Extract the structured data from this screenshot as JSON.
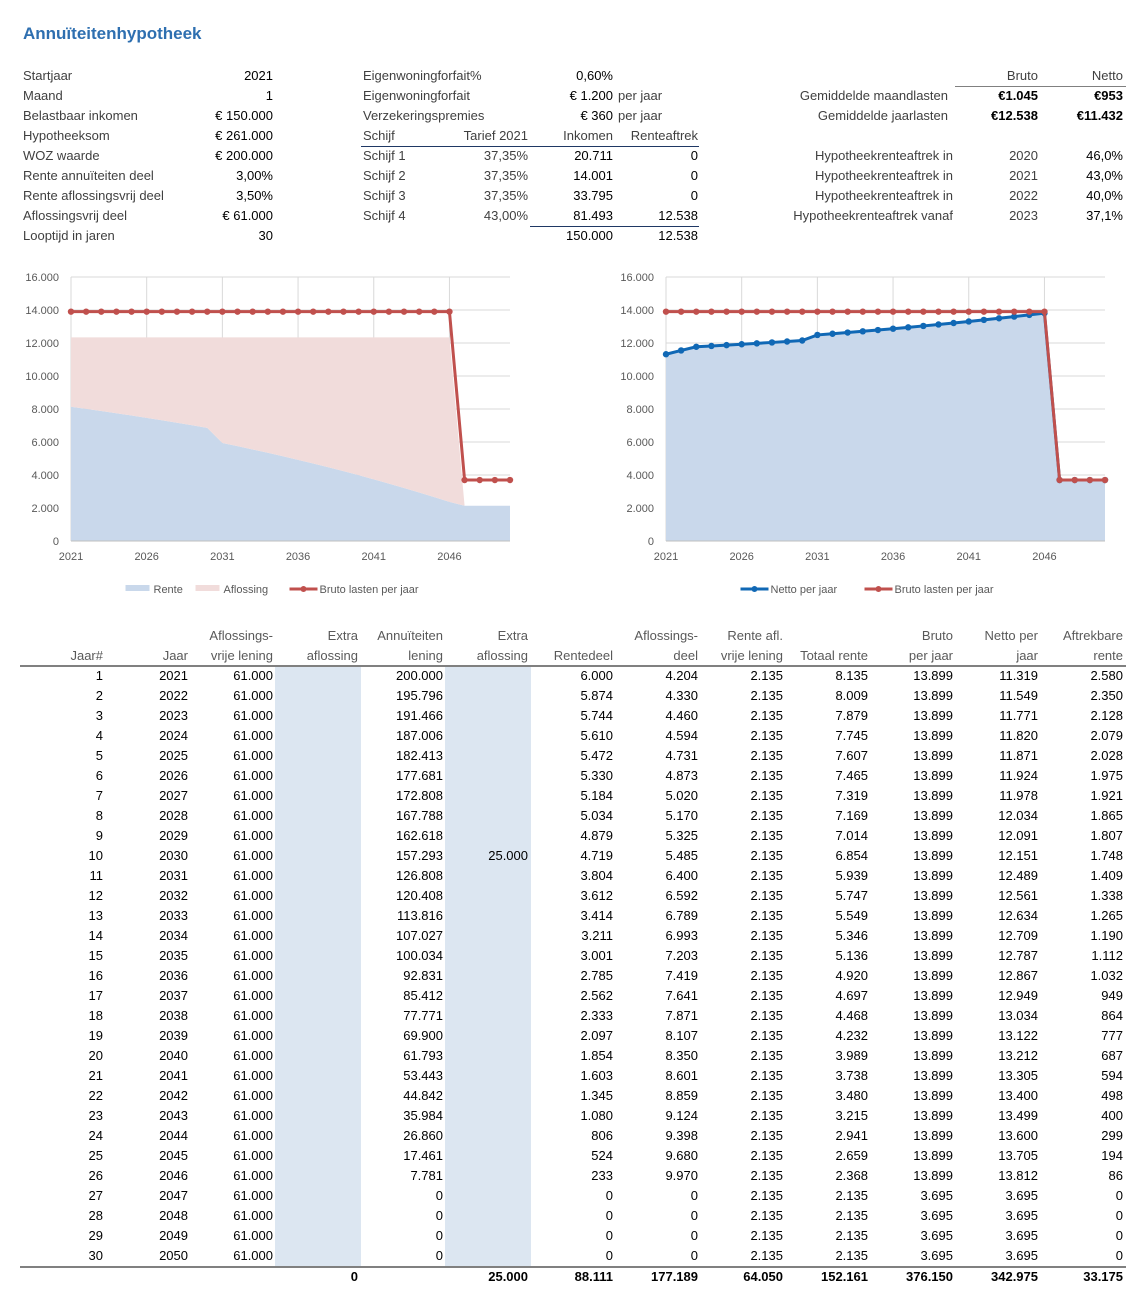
{
  "title": "Annuïteitenhypotheek",
  "inputs": [
    {
      "label": "Startjaar",
      "value": "2021"
    },
    {
      "label": "Maand",
      "value": "1"
    },
    {
      "label": "Belastbaar inkomen",
      "value": "€ 150.000"
    },
    {
      "label": "Hypotheeksom",
      "value": "€ 261.000"
    },
    {
      "label": "WOZ waarde",
      "value": "€ 200.000"
    },
    {
      "label": "Rente annuïteiten deel",
      "value": "3,00%"
    },
    {
      "label": "Rente aflossingsvrij deel",
      "value": "3,50%"
    },
    {
      "label": "Aflossingsvrij deel",
      "value": "€ 61.000"
    },
    {
      "label": "Looptijd in jaren",
      "value": "30"
    }
  ],
  "forfait": [
    {
      "label": "Eigenwoningforfait%",
      "value": "0,60%",
      "unit": ""
    },
    {
      "label": "Eigenwoningforfait",
      "value": "€ 1.200",
      "unit": "per jaar"
    },
    {
      "label": "Verzekeringspremies",
      "value": "€ 360",
      "unit": "per jaar"
    }
  ],
  "schijven": {
    "headers": [
      "Schijf",
      "Tarief 2021",
      "Inkomen",
      "Renteaftrek"
    ],
    "rows": [
      [
        "Schijf 1",
        "37,35%",
        "20.711",
        "0"
      ],
      [
        "Schijf 2",
        "37,35%",
        "14.001",
        "0"
      ],
      [
        "Schijf 3",
        "37,35%",
        "33.795",
        "0"
      ],
      [
        "Schijf 4",
        "43,00%",
        "81.493",
        "12.538"
      ]
    ],
    "totals": [
      "150.000",
      "12.538"
    ]
  },
  "lasten": {
    "headers": [
      "Bruto",
      "Netto"
    ],
    "rows": [
      {
        "label": "Gemiddelde maandlasten",
        "bruto": "€1.045",
        "netto": "€953"
      },
      {
        "label": "Gemiddelde jaarlasten",
        "bruto": "€12.538",
        "netto": "€11.432"
      }
    ]
  },
  "aftrek": [
    {
      "label": "Hypotheekrenteaftrek in",
      "year": "2020",
      "pct": "46,0%"
    },
    {
      "label": "Hypotheekrenteaftrek in",
      "year": "2021",
      "pct": "43,0%"
    },
    {
      "label": "Hypotheekrenteaftrek in",
      "year": "2022",
      "pct": "40,0%"
    },
    {
      "label": "Hypotheekrenteaftrek vanaf",
      "year": "2023",
      "pct": "37,1%"
    }
  ],
  "colors": {
    "rente": "#c9d8eb",
    "aflossing": "#f1dcdb",
    "bruto": "#c0504d",
    "netto": "#1068b5",
    "title": "#2e6fb0",
    "shade": "#dce6f1"
  },
  "chart_data": [
    {
      "type": "area",
      "title": "",
      "ylim": [
        0,
        16000
      ],
      "yticks": [
        "0",
        "2.000",
        "4.000",
        "6.000",
        "8.000",
        "10.000",
        "12.000",
        "14.000",
        "16.000"
      ],
      "xticks": [
        "2021",
        "2026",
        "2031",
        "2036",
        "2041",
        "2046"
      ],
      "x": [
        2021,
        2022,
        2023,
        2024,
        2025,
        2026,
        2027,
        2028,
        2029,
        2030,
        2031,
        2032,
        2033,
        2034,
        2035,
        2036,
        2037,
        2038,
        2039,
        2040,
        2041,
        2042,
        2043,
        2044,
        2045,
        2046,
        2047,
        2048,
        2049,
        2050
      ],
      "series": [
        {
          "name": "Rente",
          "kind": "area",
          "values": [
            8135,
            8009,
            7879,
            7745,
            7607,
            7465,
            7319,
            7169,
            7014,
            6854,
            5939,
            5747,
            5549,
            5346,
            5136,
            4920,
            4697,
            4468,
            4232,
            3989,
            3738,
            3480,
            3215,
            2941,
            2659,
            2368,
            2135,
            2135,
            2135,
            2135
          ]
        },
        {
          "name": "Aflossing",
          "kind": "area",
          "values": [
            4204,
            4330,
            4460,
            4594,
            4731,
            4873,
            5020,
            5170,
            5325,
            5485,
            6400,
            6592,
            6789,
            6993,
            7203,
            7419,
            7641,
            7871,
            8107,
            8350,
            8601,
            8859,
            9124,
            9398,
            9680,
            9970,
            0,
            0,
            0,
            0
          ]
        },
        {
          "name": "Bruto lasten per jaar",
          "kind": "line",
          "values": [
            13899,
            13899,
            13899,
            13899,
            13899,
            13899,
            13899,
            13899,
            13899,
            13899,
            13899,
            13899,
            13899,
            13899,
            13899,
            13899,
            13899,
            13899,
            13899,
            13899,
            13899,
            13899,
            13899,
            13899,
            13899,
            13899,
            3695,
            3695,
            3695,
            3695
          ]
        }
      ],
      "legend": "bottom"
    },
    {
      "type": "line",
      "title": "",
      "ylim": [
        0,
        16000
      ],
      "yticks": [
        "0",
        "2.000",
        "4.000",
        "6.000",
        "8.000",
        "10.000",
        "12.000",
        "14.000",
        "16.000"
      ],
      "xticks": [
        "2021",
        "2026",
        "2031",
        "2036",
        "2041",
        "2046"
      ],
      "x": [
        2021,
        2022,
        2023,
        2024,
        2025,
        2026,
        2027,
        2028,
        2029,
        2030,
        2031,
        2032,
        2033,
        2034,
        2035,
        2036,
        2037,
        2038,
        2039,
        2040,
        2041,
        2042,
        2043,
        2044,
        2045,
        2046,
        2047,
        2048,
        2049,
        2050
      ],
      "series": [
        {
          "name": "Netto per jaar",
          "kind": "line-area",
          "values": [
            11319,
            11549,
            11771,
            11820,
            11871,
            11924,
            11978,
            12034,
            12091,
            12151,
            12489,
            12561,
            12634,
            12709,
            12787,
            12867,
            12949,
            13034,
            13122,
            13212,
            13305,
            13400,
            13499,
            13600,
            13705,
            13812,
            3695,
            3695,
            3695,
            3695
          ]
        },
        {
          "name": "Bruto lasten per jaar",
          "kind": "line",
          "values": [
            13899,
            13899,
            13899,
            13899,
            13899,
            13899,
            13899,
            13899,
            13899,
            13899,
            13899,
            13899,
            13899,
            13899,
            13899,
            13899,
            13899,
            13899,
            13899,
            13899,
            13899,
            13899,
            13899,
            13899,
            13899,
            13899,
            3695,
            3695,
            3695,
            3695
          ]
        }
      ],
      "legend": "bottom"
    }
  ],
  "table": {
    "headers": [
      [
        "",
        "Jaar#"
      ],
      [
        "",
        "Jaar"
      ],
      [
        "Aflossings-",
        "vrije lening"
      ],
      [
        "Extra",
        "aflossing"
      ],
      [
        "Annuïteiten",
        "lening"
      ],
      [
        "Extra",
        "aflossing"
      ],
      [
        "",
        "Rentedeel"
      ],
      [
        "Aflossings-",
        "deel"
      ],
      [
        "Rente afl.",
        "vrije lening"
      ],
      [
        "",
        "Totaal rente"
      ],
      [
        "Bruto",
        "per jaar"
      ],
      [
        "Netto per",
        "jaar"
      ],
      [
        "Aftrekbare",
        "rente"
      ]
    ],
    "rows": [
      [
        "1",
        "2021",
        "61.000",
        "",
        "200.000",
        "",
        "6.000",
        "4.204",
        "2.135",
        "8.135",
        "13.899",
        "11.319",
        "2.580"
      ],
      [
        "2",
        "2022",
        "61.000",
        "",
        "195.796",
        "",
        "5.874",
        "4.330",
        "2.135",
        "8.009",
        "13.899",
        "11.549",
        "2.350"
      ],
      [
        "3",
        "2023",
        "61.000",
        "",
        "191.466",
        "",
        "5.744",
        "4.460",
        "2.135",
        "7.879",
        "13.899",
        "11.771",
        "2.128"
      ],
      [
        "4",
        "2024",
        "61.000",
        "",
        "187.006",
        "",
        "5.610",
        "4.594",
        "2.135",
        "7.745",
        "13.899",
        "11.820",
        "2.079"
      ],
      [
        "5",
        "2025",
        "61.000",
        "",
        "182.413",
        "",
        "5.472",
        "4.731",
        "2.135",
        "7.607",
        "13.899",
        "11.871",
        "2.028"
      ],
      [
        "6",
        "2026",
        "61.000",
        "",
        "177.681",
        "",
        "5.330",
        "4.873",
        "2.135",
        "7.465",
        "13.899",
        "11.924",
        "1.975"
      ],
      [
        "7",
        "2027",
        "61.000",
        "",
        "172.808",
        "",
        "5.184",
        "5.020",
        "2.135",
        "7.319",
        "13.899",
        "11.978",
        "1.921"
      ],
      [
        "8",
        "2028",
        "61.000",
        "",
        "167.788",
        "",
        "5.034",
        "5.170",
        "2.135",
        "7.169",
        "13.899",
        "12.034",
        "1.865"
      ],
      [
        "9",
        "2029",
        "61.000",
        "",
        "162.618",
        "",
        "4.879",
        "5.325",
        "2.135",
        "7.014",
        "13.899",
        "12.091",
        "1.807"
      ],
      [
        "10",
        "2030",
        "61.000",
        "",
        "157.293",
        "25.000",
        "4.719",
        "5.485",
        "2.135",
        "6.854",
        "13.899",
        "12.151",
        "1.748"
      ],
      [
        "11",
        "2031",
        "61.000",
        "",
        "126.808",
        "",
        "3.804",
        "6.400",
        "2.135",
        "5.939",
        "13.899",
        "12.489",
        "1.409"
      ],
      [
        "12",
        "2032",
        "61.000",
        "",
        "120.408",
        "",
        "3.612",
        "6.592",
        "2.135",
        "5.747",
        "13.899",
        "12.561",
        "1.338"
      ],
      [
        "13",
        "2033",
        "61.000",
        "",
        "113.816",
        "",
        "3.414",
        "6.789",
        "2.135",
        "5.549",
        "13.899",
        "12.634",
        "1.265"
      ],
      [
        "14",
        "2034",
        "61.000",
        "",
        "107.027",
        "",
        "3.211",
        "6.993",
        "2.135",
        "5.346",
        "13.899",
        "12.709",
        "1.190"
      ],
      [
        "15",
        "2035",
        "61.000",
        "",
        "100.034",
        "",
        "3.001",
        "7.203",
        "2.135",
        "5.136",
        "13.899",
        "12.787",
        "1.112"
      ],
      [
        "16",
        "2036",
        "61.000",
        "",
        "92.831",
        "",
        "2.785",
        "7.419",
        "2.135",
        "4.920",
        "13.899",
        "12.867",
        "1.032"
      ],
      [
        "17",
        "2037",
        "61.000",
        "",
        "85.412",
        "",
        "2.562",
        "7.641",
        "2.135",
        "4.697",
        "13.899",
        "12.949",
        "949"
      ],
      [
        "18",
        "2038",
        "61.000",
        "",
        "77.771",
        "",
        "2.333",
        "7.871",
        "2.135",
        "4.468",
        "13.899",
        "13.034",
        "864"
      ],
      [
        "19",
        "2039",
        "61.000",
        "",
        "69.900",
        "",
        "2.097",
        "8.107",
        "2.135",
        "4.232",
        "13.899",
        "13.122",
        "777"
      ],
      [
        "20",
        "2040",
        "61.000",
        "",
        "61.793",
        "",
        "1.854",
        "8.350",
        "2.135",
        "3.989",
        "13.899",
        "13.212",
        "687"
      ],
      [
        "21",
        "2041",
        "61.000",
        "",
        "53.443",
        "",
        "1.603",
        "8.601",
        "2.135",
        "3.738",
        "13.899",
        "13.305",
        "594"
      ],
      [
        "22",
        "2042",
        "61.000",
        "",
        "44.842",
        "",
        "1.345",
        "8.859",
        "2.135",
        "3.480",
        "13.899",
        "13.400",
        "498"
      ],
      [
        "23",
        "2043",
        "61.000",
        "",
        "35.984",
        "",
        "1.080",
        "9.124",
        "2.135",
        "3.215",
        "13.899",
        "13.499",
        "400"
      ],
      [
        "24",
        "2044",
        "61.000",
        "",
        "26.860",
        "",
        "806",
        "9.398",
        "2.135",
        "2.941",
        "13.899",
        "13.600",
        "299"
      ],
      [
        "25",
        "2045",
        "61.000",
        "",
        "17.461",
        "",
        "524",
        "9.680",
        "2.135",
        "2.659",
        "13.899",
        "13.705",
        "194"
      ],
      [
        "26",
        "2046",
        "61.000",
        "",
        "7.781",
        "",
        "233",
        "9.970",
        "2.135",
        "2.368",
        "13.899",
        "13.812",
        "86"
      ],
      [
        "27",
        "2047",
        "61.000",
        "",
        "0",
        "",
        "0",
        "0",
        "2.135",
        "2.135",
        "3.695",
        "3.695",
        "0"
      ],
      [
        "28",
        "2048",
        "61.000",
        "",
        "0",
        "",
        "0",
        "0",
        "2.135",
        "2.135",
        "3.695",
        "3.695",
        "0"
      ],
      [
        "29",
        "2049",
        "61.000",
        "",
        "0",
        "",
        "0",
        "0",
        "2.135",
        "2.135",
        "3.695",
        "3.695",
        "0"
      ],
      [
        "30",
        "2050",
        "61.000",
        "",
        "0",
        "",
        "0",
        "0",
        "2.135",
        "2.135",
        "3.695",
        "3.695",
        "0"
      ]
    ],
    "totals": [
      "",
      "",
      "",
      "0",
      "",
      "25.000",
      "88.111",
      "177.189",
      "64.050",
      "152.161",
      "376.150",
      "342.975",
      "33.175"
    ]
  }
}
